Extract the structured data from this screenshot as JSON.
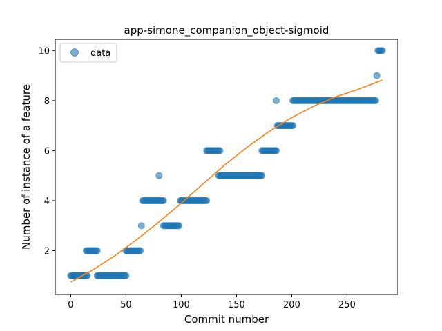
{
  "chart_data": {
    "type": "scatter",
    "title": "app-simone_companion_object-sigmoid",
    "xlabel": "Commit number",
    "ylabel": "Number of instance of a feature",
    "xlim": [
      -14,
      296
    ],
    "ylim": [
      0.25,
      10.45
    ],
    "xticks": [
      0,
      50,
      100,
      150,
      200,
      250
    ],
    "yticks": [
      2,
      4,
      6,
      8,
      10
    ],
    "grid": false,
    "legend": {
      "position": "top-left",
      "entries": [
        "data"
      ]
    },
    "colors": {
      "scatter": "#1f77b4",
      "fit": "#ff7f0e"
    },
    "series": [
      {
        "name": "data",
        "kind": "scatter",
        "segments": [
          {
            "x_start": 0,
            "x_end": 15,
            "y": 1
          },
          {
            "x_start": 14,
            "x_end": 24,
            "y": 2
          },
          {
            "x_start": 24,
            "x_end": 50,
            "y": 1
          },
          {
            "x_start": 50,
            "x_end": 63,
            "y": 2
          },
          {
            "x_start": 64,
            "x_end": 64,
            "y": 3
          },
          {
            "x_start": 65,
            "x_end": 84,
            "y": 4
          },
          {
            "x_start": 80,
            "x_end": 80,
            "y": 5
          },
          {
            "x_start": 84,
            "x_end": 98,
            "y": 3
          },
          {
            "x_start": 99,
            "x_end": 123,
            "y": 4
          },
          {
            "x_start": 123,
            "x_end": 135,
            "y": 6
          },
          {
            "x_start": 134,
            "x_end": 173,
            "y": 5
          },
          {
            "x_start": 173,
            "x_end": 186,
            "y": 6
          },
          {
            "x_start": 186,
            "x_end": 186,
            "y": 8
          },
          {
            "x_start": 187,
            "x_end": 201,
            "y": 7
          },
          {
            "x_start": 201,
            "x_end": 276,
            "y": 8
          },
          {
            "x_start": 277,
            "x_end": 277,
            "y": 9
          },
          {
            "x_start": 278,
            "x_end": 282,
            "y": 10
          }
        ]
      },
      {
        "name": "",
        "kind": "line",
        "x": [
          0,
          20,
          40,
          60,
          80,
          100,
          120,
          140,
          160,
          180,
          200,
          220,
          240,
          260,
          282
        ],
        "y": [
          0.75,
          1.23,
          1.8,
          2.45,
          3.15,
          3.9,
          4.68,
          5.45,
          6.15,
          6.78,
          7.32,
          7.78,
          8.15,
          8.45,
          8.82
        ]
      }
    ]
  }
}
